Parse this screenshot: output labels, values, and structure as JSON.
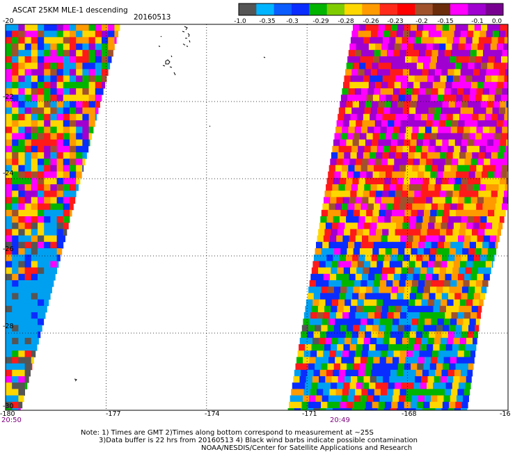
{
  "title": "ASCAT 25KM MLE-1 descending",
  "date": "20160513",
  "legend": {
    "colors": [
      "#555555",
      "#00b4ff",
      "#0a5cff",
      "#0a2dff",
      "#00b400",
      "#7fcc00",
      "#ffd700",
      "#ff9a00",
      "#ff2a1a",
      "#ff0000",
      "#a0522d",
      "#6b2c0c",
      "#ff00ff",
      "#a000d0",
      "#780090"
    ],
    "labels": [
      "-1.0",
      "-0.35",
      "-0.3",
      "-0.29",
      "-0.28",
      "-0.26",
      "-0.23",
      "-0.2",
      "-0.15",
      "-0.1",
      "0.0"
    ]
  },
  "chart_data": {
    "type": "heatmap",
    "title": "ASCAT 25KM MLE-1 descending",
    "subtitle": "20160513",
    "x_ticks": [
      "-180",
      "-177",
      "-174",
      "-171",
      "-168",
      "-16"
    ],
    "y_ticks": [
      "-20",
      "-22",
      "-24",
      "-26",
      "-28",
      "-30"
    ],
    "x_range": [
      -180,
      -165
    ],
    "y_range": [
      -30,
      -20
    ],
    "grid": true,
    "color_scale": {
      "min": -1.0,
      "max": 0.0,
      "tick_labels": [
        "-1.0",
        "-0.35",
        "-0.3",
        "-0.29",
        "-0.28",
        "-0.26",
        "-0.23",
        "-0.2",
        "-0.15",
        "-0.1",
        "0.0"
      ]
    },
    "swaths": [
      {
        "time": "20:50",
        "lon_range": [
          -180,
          -176.8
        ]
      },
      {
        "time": "20:49",
        "lon_range": [
          -171.2,
          -165
        ]
      }
    ]
  },
  "notes": {
    "line1": "Note: 1) Times are GMT 2)Times along bottom correspond to measurement at ~25S",
    "line2": "3)Data buffer is 22 hrs from 20160513 4) Black wind barbs indicate possible contamination",
    "line3": "NOAA/NESDIS/Center for Satellite Applications and Research"
  }
}
